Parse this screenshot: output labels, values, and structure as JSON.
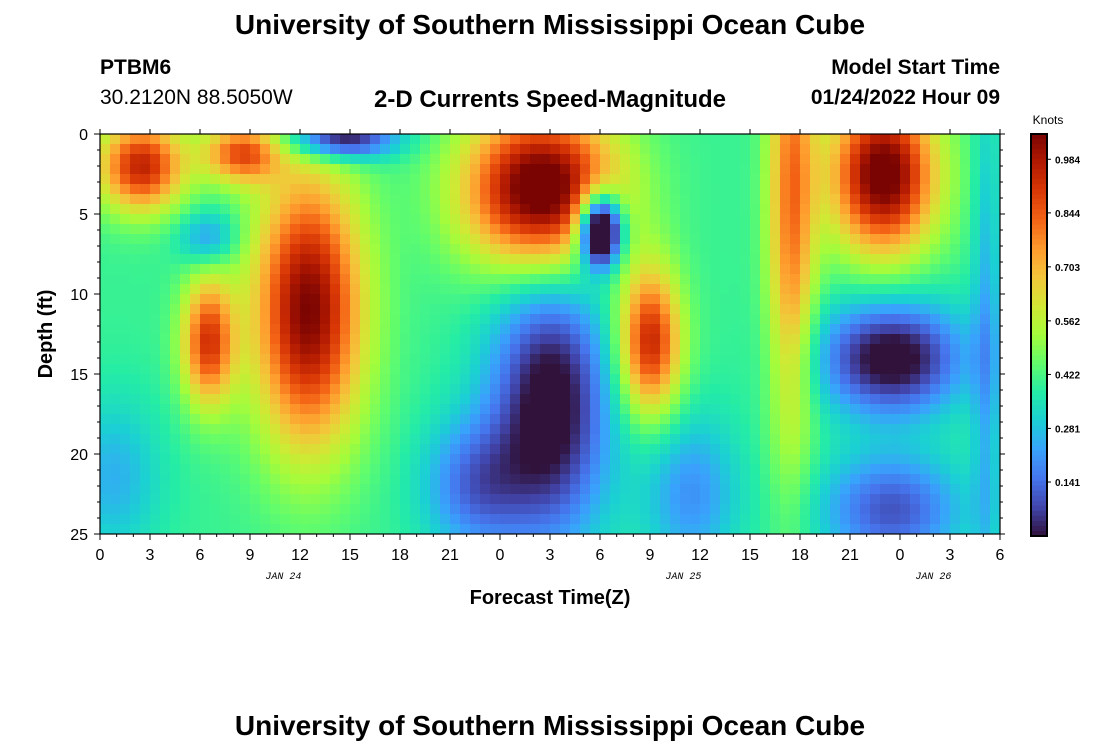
{
  "title": "University of Southern Mississippi Ocean Cube",
  "footer_title": "University of Southern Mississippi Ocean Cube",
  "station": {
    "id": "PTBM6",
    "coords": "30.2120N  88.5050W"
  },
  "model_start": {
    "label": "Model Start Time",
    "value": "01/24/2022 Hour 09"
  },
  "colors": {
    "colormap": [
      "#30123b",
      "#4145ab",
      "#4675ed",
      "#39a2fc",
      "#1bcfd4",
      "#24eca6",
      "#61fc6c",
      "#a4fc3b",
      "#d1e834",
      "#f3c63a",
      "#fe9b2d",
      "#f36315",
      "#d93806",
      "#b11901",
      "#7a0402"
    ]
  },
  "chart_data": {
    "type": "heatmap",
    "title": "2-D Currents Speed-Magnitude",
    "xlabel": "Forecast Time(Z)",
    "ylabel": "Depth (ft)",
    "x_range_hours": [
      0,
      54
    ],
    "ylim": [
      0,
      25
    ],
    "y_ticks": [
      0,
      5,
      10,
      15,
      20,
      25
    ],
    "x_tick_labels": [
      "0",
      "3",
      "6",
      "9",
      "12",
      "15",
      "18",
      "21",
      "0",
      "3",
      "6",
      "9",
      "12",
      "15",
      "18",
      "21",
      "0",
      "3",
      "6"
    ],
    "date_labels": [
      {
        "hour": 11,
        "text": "JAN 24"
      },
      {
        "hour": 35,
        "text": "JAN 25"
      },
      {
        "hour": 50,
        "text": "JAN 26"
      }
    ],
    "colorbar": {
      "label": "Knots",
      "min": 0,
      "max": 1.05,
      "ticks": [
        "0.141",
        "0.281",
        "0.422",
        "0.562",
        "0.703",
        "0.844",
        "0.984"
      ]
    },
    "features": [
      {
        "t": 2.5,
        "d": 2.0,
        "st": 1.8,
        "sd": 2.0,
        "a": 0.55
      },
      {
        "t": 8.5,
        "d": 1.2,
        "st": 1.6,
        "sd": 1.3,
        "a": 0.45
      },
      {
        "t": 6.5,
        "d": 13.0,
        "st": 1.1,
        "sd": 2.8,
        "a": 0.5
      },
      {
        "t": 12.5,
        "d": 11.0,
        "st": 2.3,
        "sd": 6.0,
        "a": 0.65
      },
      {
        "t": 6.5,
        "d": 6.5,
        "st": 1.2,
        "sd": 1.2,
        "a": -0.2
      },
      {
        "t": 14.5,
        "d": 0.3,
        "st": 2.2,
        "sd": 0.9,
        "a": -0.45
      },
      {
        "t": 0.8,
        "d": 21.5,
        "st": 2.0,
        "sd": 3.5,
        "a": -0.15
      },
      {
        "t": 22.5,
        "d": 22.0,
        "st": 2.2,
        "sd": 3.0,
        "a": -0.25
      },
      {
        "t": 27.0,
        "d": 17.0,
        "st": 2.5,
        "sd": 6.0,
        "a": -0.45
      },
      {
        "t": 26.5,
        "d": 3.5,
        "st": 3.2,
        "sd": 3.5,
        "a": 0.75
      },
      {
        "t": 30.0,
        "d": 6.0,
        "st": 0.9,
        "sd": 1.6,
        "a": -0.85
      },
      {
        "t": 33.0,
        "d": 13.0,
        "st": 1.3,
        "sd": 3.2,
        "a": 0.55
      },
      {
        "t": 35.5,
        "d": 22.5,
        "st": 2.0,
        "sd": 3.5,
        "a": -0.2
      },
      {
        "t": 41.5,
        "d": 4.0,
        "st": 1.0,
        "sd": 11.0,
        "a": 0.4
      },
      {
        "t": 47.0,
        "d": 2.5,
        "st": 2.2,
        "sd": 3.5,
        "a": 0.7
      },
      {
        "t": 47.5,
        "d": 14.0,
        "st": 3.0,
        "sd": 2.5,
        "a": -0.45
      },
      {
        "t": 47.5,
        "d": 23.5,
        "st": 3.0,
        "sd": 2.5,
        "a": -0.3
      },
      {
        "t": 53.2,
        "d": 13.0,
        "st": 0.6,
        "sd": 12.0,
        "a": -0.15
      }
    ]
  }
}
